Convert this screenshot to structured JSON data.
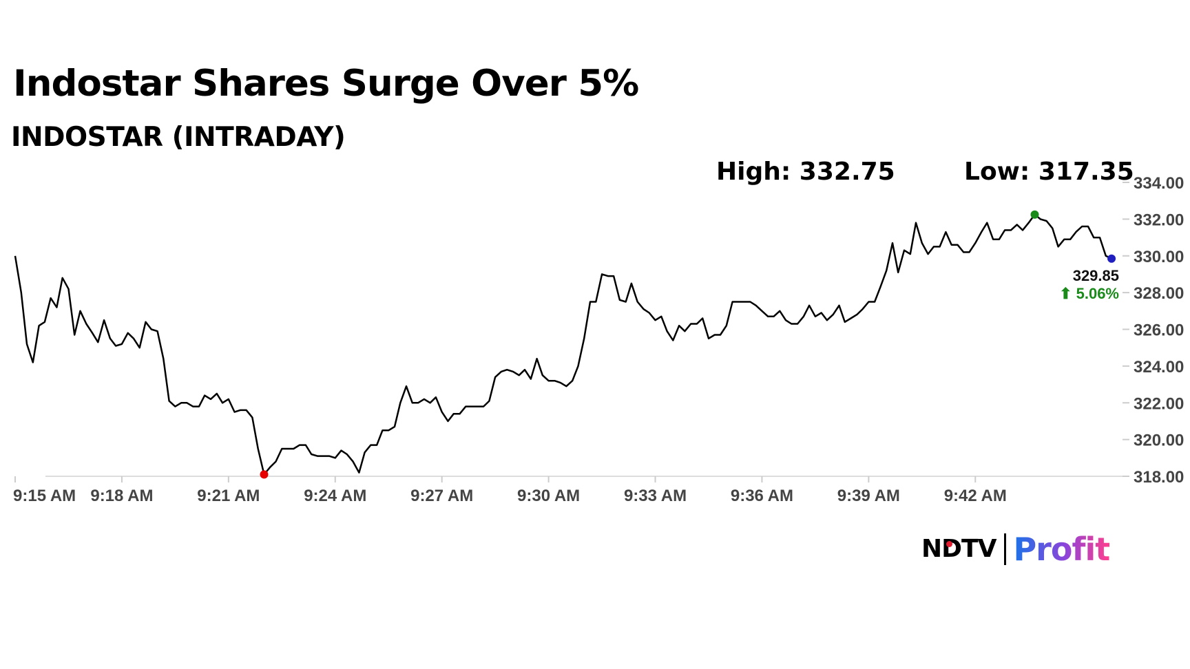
{
  "header": {
    "headline": "Indostar Shares Surge Over 5%",
    "subheadline": "INDOSTAR (INTRADAY)"
  },
  "stats": {
    "high_label": "High: 332.75",
    "low_label": "Low: 317.35"
  },
  "brand": {
    "primary": "NDTV",
    "secondary": "Profit"
  },
  "chart_data": {
    "type": "line",
    "title": "",
    "xlabel": "",
    "ylabel": "",
    "ylim": [
      318,
      334
    ],
    "xlim": [
      "9:15 AM",
      "9:45 AM"
    ],
    "x_unit": "minutes since 9:15 AM",
    "y_ticks": [
      "318.00",
      "320.00",
      "322.00",
      "324.00",
      "326.00",
      "328.00",
      "330.00",
      "332.00",
      "334.00"
    ],
    "x_ticks": [
      "9:15 AM",
      "9:18 AM",
      "9:21 AM",
      "9:24 AM",
      "9:27 AM",
      "9:30 AM",
      "9:33 AM",
      "9:36 AM",
      "9:39 AM",
      "9:42 AM"
    ],
    "grid": false,
    "colors": {
      "line": "#000000",
      "low_marker": "#e60000",
      "high_marker": "#1a8a1a",
      "last_marker": "#1f1fbf",
      "change": "#1a8a1a"
    },
    "last": {
      "value": "329.85",
      "change": "5.06%",
      "direction": "up"
    },
    "series": [
      {
        "points": [
          [
            0.0,
            330.0
          ],
          [
            0.17,
            328.0
          ],
          [
            0.33,
            325.2
          ],
          [
            0.5,
            324.2
          ],
          [
            0.67,
            326.2
          ],
          [
            0.83,
            326.4
          ],
          [
            1.0,
            327.7
          ],
          [
            1.17,
            327.2
          ],
          [
            1.33,
            328.8
          ],
          [
            1.5,
            328.2
          ],
          [
            1.67,
            325.7
          ],
          [
            1.83,
            327.0
          ],
          [
            2.0,
            326.3
          ],
          [
            2.17,
            325.8
          ],
          [
            2.33,
            325.3
          ],
          [
            2.5,
            326.5
          ],
          [
            2.67,
            325.5
          ],
          [
            2.83,
            325.1
          ],
          [
            3.0,
            325.2
          ],
          [
            3.17,
            325.8
          ],
          [
            3.33,
            325.5
          ],
          [
            3.5,
            325.0
          ],
          [
            3.67,
            326.4
          ],
          [
            3.83,
            326.0
          ],
          [
            4.0,
            325.9
          ],
          [
            4.17,
            324.4
          ],
          [
            4.33,
            322.1
          ],
          [
            4.5,
            321.8
          ],
          [
            4.67,
            322.0
          ],
          [
            4.83,
            322.0
          ],
          [
            5.0,
            321.8
          ],
          [
            5.17,
            321.8
          ],
          [
            5.33,
            322.4
          ],
          [
            5.5,
            322.2
          ],
          [
            5.67,
            322.5
          ],
          [
            5.83,
            322.0
          ],
          [
            6.0,
            322.2
          ],
          [
            6.17,
            321.5
          ],
          [
            6.33,
            321.6
          ],
          [
            6.5,
            321.6
          ],
          [
            6.67,
            321.2
          ],
          [
            6.83,
            319.5
          ],
          [
            7.0,
            318.1
          ],
          [
            7.17,
            318.5
          ],
          [
            7.33,
            318.8
          ],
          [
            7.5,
            319.5
          ],
          [
            7.67,
            319.5
          ],
          [
            7.83,
            319.5
          ],
          [
            8.0,
            319.7
          ],
          [
            8.17,
            319.7
          ],
          [
            8.33,
            319.2
          ],
          [
            8.5,
            319.1
          ],
          [
            8.67,
            319.1
          ],
          [
            8.83,
            319.1
          ],
          [
            9.0,
            319.0
          ],
          [
            9.17,
            319.4
          ],
          [
            9.33,
            319.2
          ],
          [
            9.5,
            318.8
          ],
          [
            9.67,
            318.2
          ],
          [
            9.83,
            319.3
          ],
          [
            10.0,
            319.7
          ],
          [
            10.17,
            319.7
          ],
          [
            10.33,
            320.5
          ],
          [
            10.5,
            320.5
          ],
          [
            10.67,
            320.7
          ],
          [
            10.83,
            322.0
          ],
          [
            11.0,
            322.9
          ],
          [
            11.17,
            322.0
          ],
          [
            11.33,
            322.0
          ],
          [
            11.5,
            322.2
          ],
          [
            11.67,
            322.0
          ],
          [
            11.83,
            322.3
          ],
          [
            12.0,
            321.5
          ],
          [
            12.17,
            321.0
          ],
          [
            12.33,
            321.4
          ],
          [
            12.5,
            321.4
          ],
          [
            12.67,
            321.8
          ],
          [
            12.83,
            321.8
          ],
          [
            13.0,
            321.8
          ],
          [
            13.17,
            321.8
          ],
          [
            13.33,
            322.1
          ],
          [
            13.5,
            323.4
          ],
          [
            13.67,
            323.7
          ],
          [
            13.83,
            323.8
          ],
          [
            14.0,
            323.7
          ],
          [
            14.17,
            323.5
          ],
          [
            14.33,
            323.8
          ],
          [
            14.5,
            323.3
          ],
          [
            14.67,
            324.4
          ],
          [
            14.83,
            323.5
          ],
          [
            15.0,
            323.2
          ],
          [
            15.17,
            323.2
          ],
          [
            15.33,
            323.1
          ],
          [
            15.5,
            322.9
          ],
          [
            15.67,
            323.2
          ],
          [
            15.83,
            324.0
          ],
          [
            16.0,
            325.5
          ],
          [
            16.17,
            327.5
          ],
          [
            16.33,
            327.5
          ],
          [
            16.5,
            329.0
          ],
          [
            16.67,
            328.9
          ],
          [
            16.83,
            328.9
          ],
          [
            17.0,
            327.6
          ],
          [
            17.17,
            327.5
          ],
          [
            17.33,
            328.5
          ],
          [
            17.5,
            327.5
          ],
          [
            17.67,
            327.1
          ],
          [
            17.83,
            326.9
          ],
          [
            18.0,
            326.5
          ],
          [
            18.17,
            326.7
          ],
          [
            18.33,
            325.9
          ],
          [
            18.5,
            325.4
          ],
          [
            18.67,
            326.2
          ],
          [
            18.83,
            325.9
          ],
          [
            19.0,
            326.3
          ],
          [
            19.17,
            326.3
          ],
          [
            19.33,
            326.6
          ],
          [
            19.5,
            325.5
          ],
          [
            19.67,
            325.7
          ],
          [
            19.83,
            325.7
          ],
          [
            20.0,
            326.2
          ],
          [
            20.17,
            327.5
          ],
          [
            20.33,
            327.5
          ],
          [
            20.5,
            327.5
          ],
          [
            20.67,
            327.5
          ],
          [
            20.83,
            327.3
          ],
          [
            21.0,
            327.0
          ],
          [
            21.17,
            326.7
          ],
          [
            21.33,
            326.7
          ],
          [
            21.5,
            327.0
          ],
          [
            21.67,
            326.5
          ],
          [
            21.83,
            326.3
          ],
          [
            22.0,
            326.3
          ],
          [
            22.17,
            326.7
          ],
          [
            22.33,
            327.3
          ],
          [
            22.5,
            326.7
          ],
          [
            22.67,
            326.9
          ],
          [
            22.83,
            326.5
          ],
          [
            23.0,
            326.8
          ],
          [
            23.17,
            327.3
          ],
          [
            23.33,
            326.4
          ],
          [
            23.5,
            326.6
          ],
          [
            23.67,
            326.8
          ],
          [
            23.83,
            327.1
          ],
          [
            24.0,
            327.5
          ],
          [
            24.17,
            327.5
          ],
          [
            24.33,
            328.3
          ],
          [
            24.5,
            329.2
          ],
          [
            24.67,
            330.7
          ],
          [
            24.83,
            329.1
          ],
          [
            25.0,
            330.3
          ],
          [
            25.17,
            330.1
          ],
          [
            25.33,
            331.8
          ],
          [
            25.5,
            330.7
          ],
          [
            25.67,
            330.1
          ],
          [
            25.83,
            330.5
          ],
          [
            26.0,
            330.5
          ],
          [
            26.17,
            331.3
          ],
          [
            26.33,
            330.6
          ],
          [
            26.5,
            330.6
          ],
          [
            26.67,
            330.2
          ],
          [
            26.83,
            330.2
          ],
          [
            27.0,
            330.7
          ],
          [
            27.17,
            331.3
          ],
          [
            27.33,
            331.8
          ],
          [
            27.5,
            330.9
          ],
          [
            27.67,
            330.9
          ],
          [
            27.83,
            331.4
          ],
          [
            28.0,
            331.4
          ],
          [
            28.17,
            331.7
          ],
          [
            28.33,
            331.4
          ],
          [
            28.5,
            331.8
          ],
          [
            28.67,
            332.25
          ],
          [
            28.83,
            332.0
          ],
          [
            29.0,
            331.9
          ],
          [
            29.17,
            331.5
          ],
          [
            29.33,
            330.5
          ],
          [
            29.5,
            330.9
          ],
          [
            29.67,
            330.9
          ],
          [
            29.83,
            331.3
          ],
          [
            30.0,
            331.6
          ],
          [
            30.17,
            331.6
          ],
          [
            30.33,
            331.0
          ],
          [
            30.5,
            331.0
          ],
          [
            30.67,
            330.0
          ],
          [
            30.83,
            329.85
          ]
        ]
      }
    ]
  }
}
